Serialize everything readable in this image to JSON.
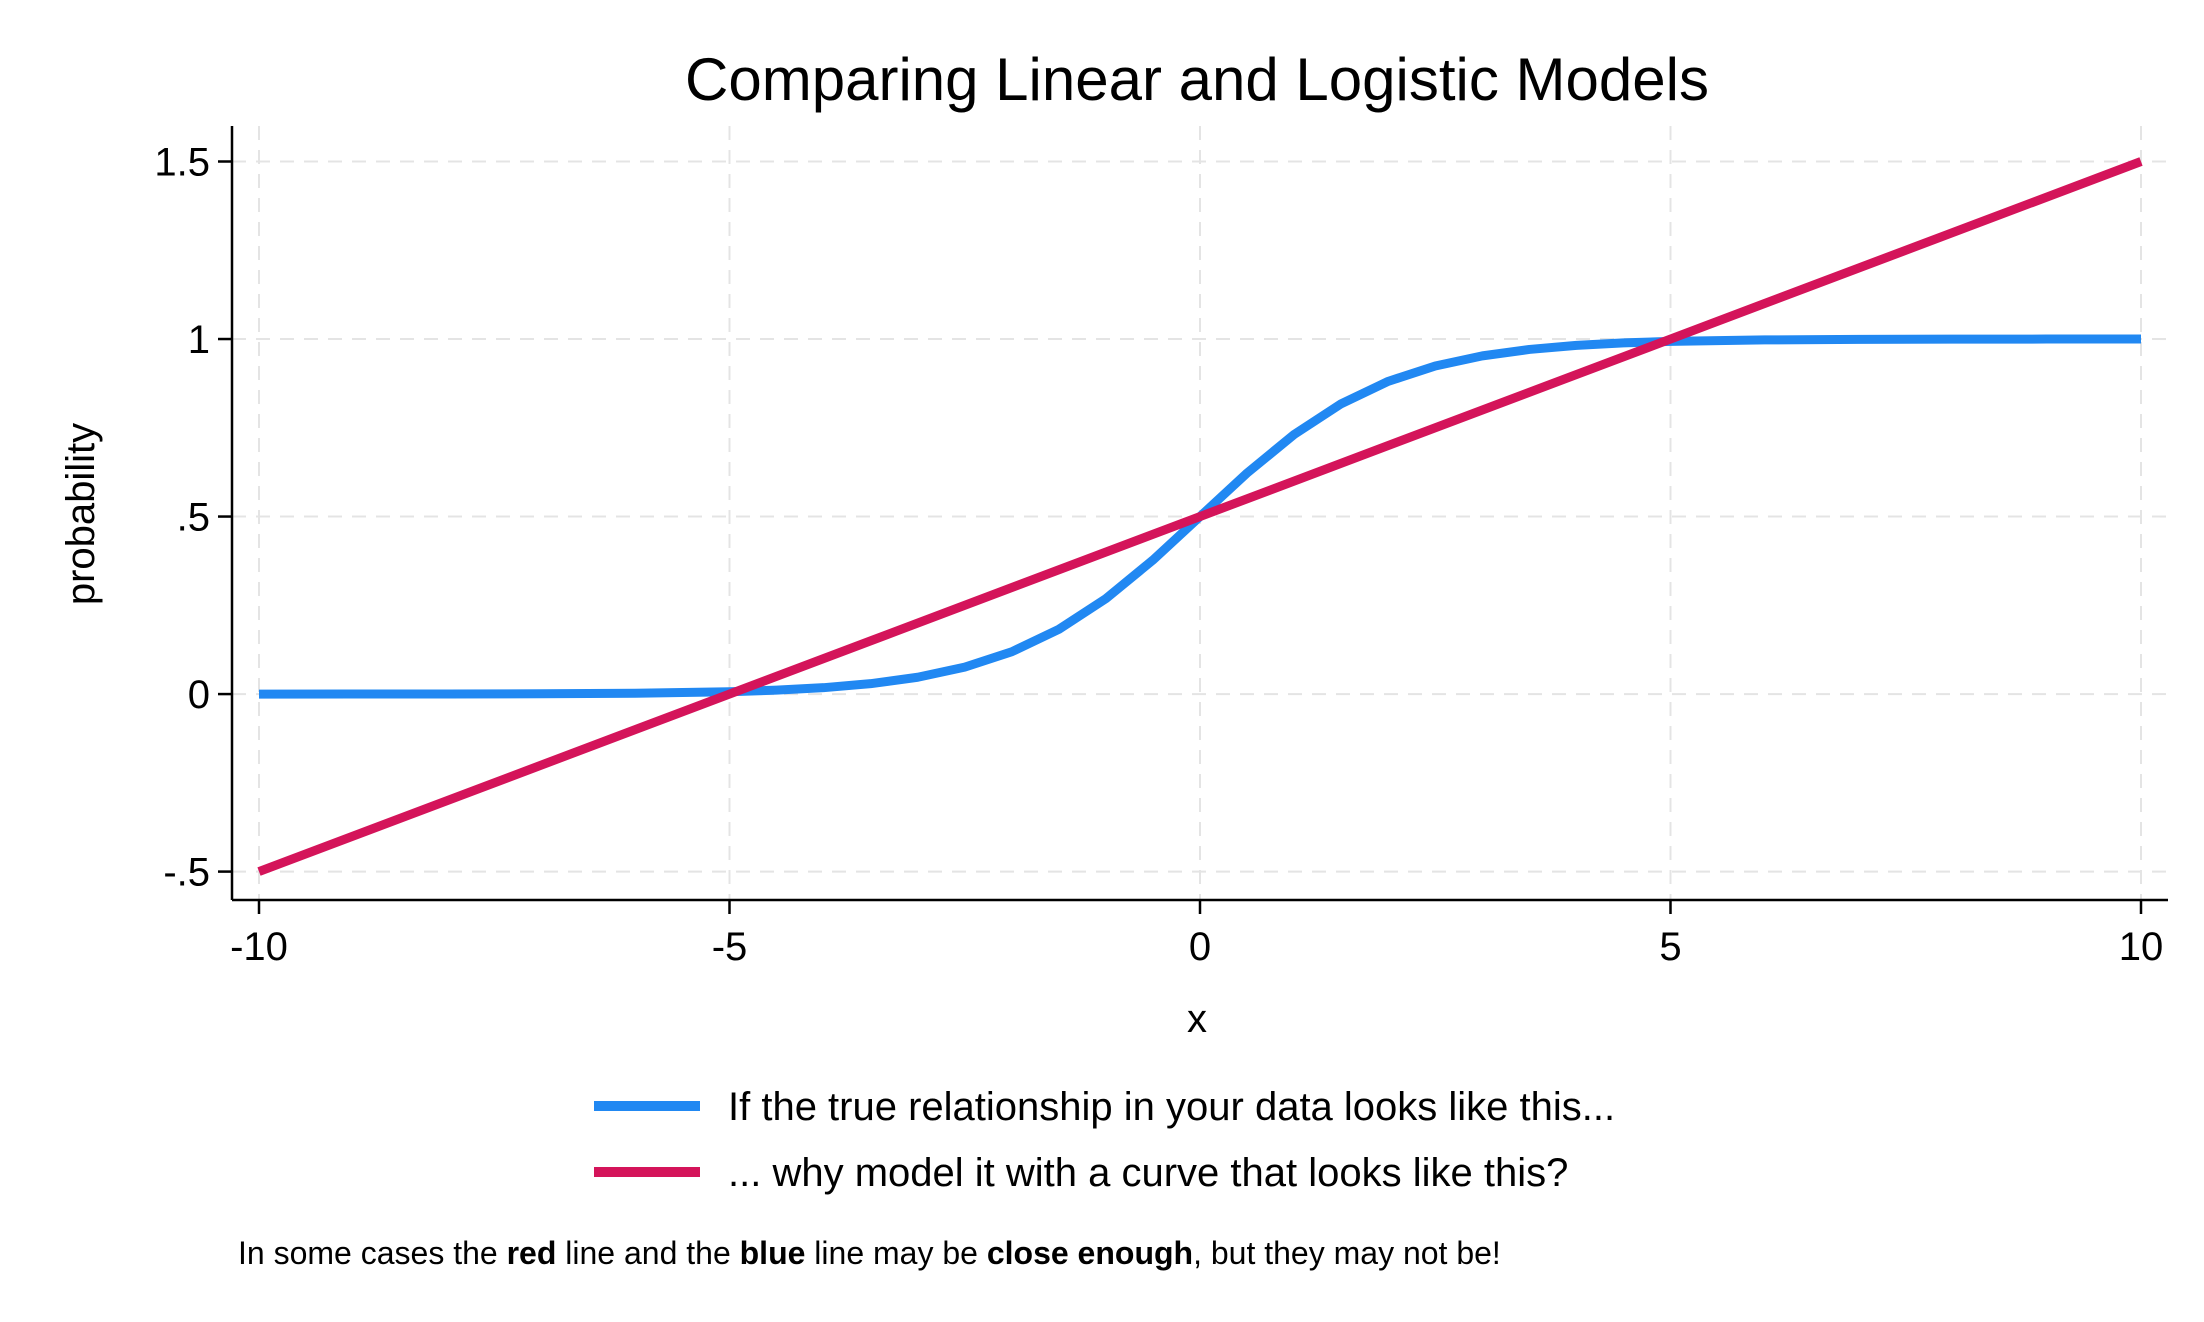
{
  "chart_data": {
    "type": "line",
    "title": "Comparing Linear and Logistic Models",
    "xlabel": "x",
    "ylabel": "probability",
    "xlim": [
      -10,
      10
    ],
    "ylim": [
      -0.58,
      1.6
    ],
    "grid": true,
    "legend_position": "bottom",
    "x_ticks": [
      {
        "value": -10,
        "label": "-10"
      },
      {
        "value": -5,
        "label": "-5"
      },
      {
        "value": 0,
        "label": "0"
      },
      {
        "value": 5,
        "label": "5"
      },
      {
        "value": 10,
        "label": "10"
      }
    ],
    "y_ticks": [
      {
        "value": -0.5,
        "label": "-.5"
      },
      {
        "value": 0,
        "label": "0"
      },
      {
        "value": 0.5,
        "label": ".5"
      },
      {
        "value": 1,
        "label": "1"
      },
      {
        "value": 1.5,
        "label": "1.5"
      }
    ],
    "series": [
      {
        "name": "If the true relationship in your data looks like this...",
        "color": "#2188f2",
        "x": [
          -10,
          -9,
          -8,
          -7,
          -6,
          -5,
          -4.5,
          -4,
          -3.5,
          -3,
          -2.5,
          -2,
          -1.5,
          -1,
          -0.5,
          0,
          0.5,
          1,
          1.5,
          2,
          2.5,
          3,
          3.5,
          4,
          4.5,
          5,
          6,
          7,
          8,
          9,
          10
        ],
        "y": [
          0.0,
          0.0001,
          0.0003,
          0.0009,
          0.0025,
          0.0067,
          0.011,
          0.018,
          0.0293,
          0.0474,
          0.0759,
          0.1192,
          0.1824,
          0.2689,
          0.3775,
          0.5,
          0.6225,
          0.7311,
          0.8176,
          0.8808,
          0.9241,
          0.9526,
          0.9707,
          0.982,
          0.989,
          0.9933,
          0.9975,
          0.9991,
          0.9997,
          0.9999,
          1.0
        ]
      },
      {
        "name": "... why model it with a curve that looks like this?",
        "color": "#d4145a",
        "x": [
          -10,
          -5,
          0,
          5,
          10
        ],
        "y": [
          -0.5,
          0.0,
          0.5,
          1.0,
          1.5
        ]
      }
    ]
  },
  "footnote": {
    "parts": [
      {
        "text": "In some cases the ",
        "bold": false
      },
      {
        "text": "red",
        "bold": true
      },
      {
        "text": " line and the ",
        "bold": false
      },
      {
        "text": "blue",
        "bold": true
      },
      {
        "text": " line may be ",
        "bold": false
      },
      {
        "text": "close enough",
        "bold": true
      },
      {
        "text": ", but they may not be!",
        "bold": false
      }
    ]
  }
}
